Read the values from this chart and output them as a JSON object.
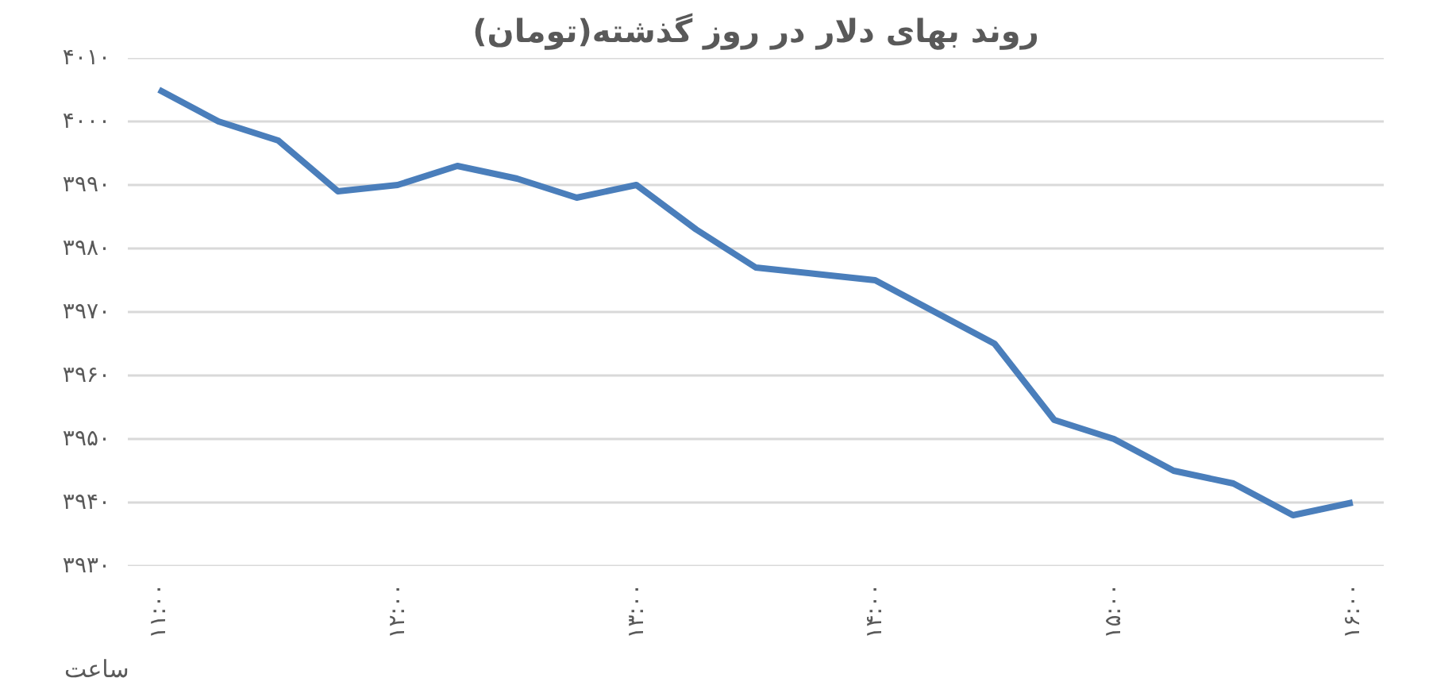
{
  "chart_data": {
    "type": "line",
    "title": "روند بهای دلار در روز گذشته(تومان)",
    "xlabel": "ساعت",
    "x": [
      11,
      11.25,
      11.5,
      11.75,
      12,
      12.25,
      12.5,
      12.75,
      13,
      13.25,
      13.5,
      13.75,
      14,
      14.25,
      14.5,
      14.75,
      15,
      15.25,
      15.5,
      15.75,
      16
    ],
    "series": [
      {
        "color": "#4a7ebb",
        "values": [
          4005,
          4000,
          3997,
          3989,
          3990,
          3993,
          3991,
          3988,
          3990,
          3983,
          3977,
          3976,
          3975,
          3970,
          3965,
          3953,
          3950,
          3945,
          3943,
          3938,
          3940
        ]
      }
    ],
    "xlim": [
      10.87,
      16.13
    ],
    "xticks": [
      {
        "value": 11,
        "label": "۱۱:۰۰"
      },
      {
        "value": 12,
        "label": "۱۲:۰۰"
      },
      {
        "value": 13,
        "label": "۱۳:۰۰"
      },
      {
        "value": 14,
        "label": "۱۴:۰۰"
      },
      {
        "value": 15,
        "label": "۱۵:۰۰"
      },
      {
        "value": 16,
        "label": "۱۶:۰۰"
      }
    ],
    "ylim": [
      3930,
      4010
    ],
    "yticks": [
      {
        "value": 3930,
        "label": "۳۹۳۰"
      },
      {
        "value": 3940,
        "label": "۳۹۴۰"
      },
      {
        "value": 3950,
        "label": "۳۹۵۰"
      },
      {
        "value": 3960,
        "label": "۳۹۶۰"
      },
      {
        "value": 3970,
        "label": "۳۹۷۰"
      },
      {
        "value": 3980,
        "label": "۳۹۸۰"
      },
      {
        "value": 3990,
        "label": "۳۹۹۰"
      },
      {
        "value": 4000,
        "label": "۴۰۰۰"
      },
      {
        "value": 4010,
        "label": "۴۰۱۰"
      }
    ],
    "grid": "y",
    "marker": "none",
    "line_style": "solid"
  }
}
